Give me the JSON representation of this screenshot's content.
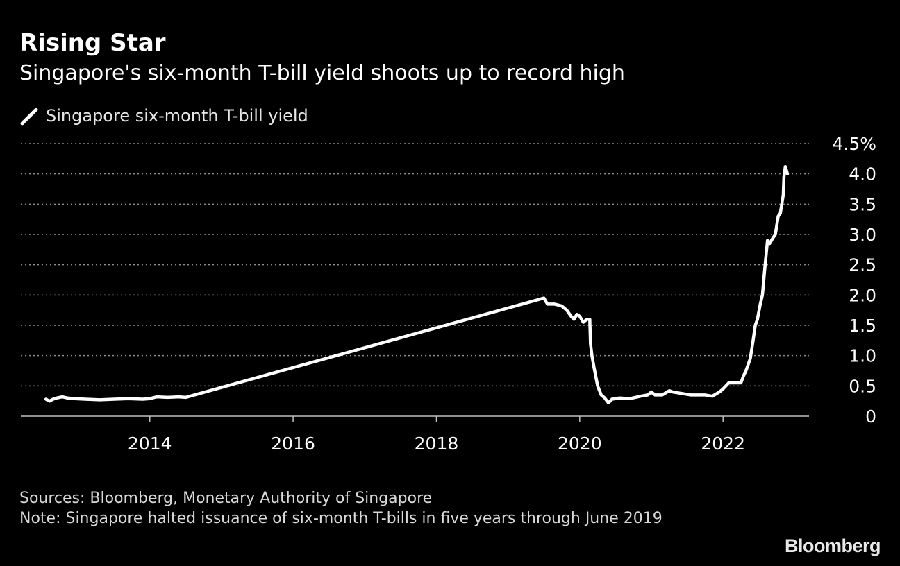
{
  "header": {
    "title": "Rising Star",
    "subtitle": "Singapore's six-month T-bill yield shoots up to record high"
  },
  "legend": {
    "label": "Singapore six-month T-bill yield"
  },
  "chart_data": {
    "type": "line",
    "title": "Rising Star",
    "subtitle": "Singapore's six-month T-bill yield shoots up to record high",
    "xlabel": "",
    "ylabel": "",
    "xlim": [
      2012.2,
      2023.2
    ],
    "ylim": [
      0,
      4.5
    ],
    "x_ticks": [
      2014,
      2016,
      2018,
      2020,
      2022
    ],
    "x_tick_labels": [
      "2014",
      "2016",
      "2018",
      "2020",
      "2022"
    ],
    "y_ticks": [
      0,
      0.5,
      1.0,
      1.5,
      2.0,
      2.5,
      3.0,
      3.5,
      4.0,
      4.5
    ],
    "y_tick_labels": [
      "0",
      "0.5",
      "1.0",
      "1.5",
      "2.0",
      "2.5",
      "3.0",
      "3.5",
      "4.0",
      "4.5%"
    ],
    "grid": "horizontal dotted",
    "colors": {
      "background": "#000000",
      "line": "#ffffff",
      "grid": "#8c8c8c",
      "text": "#ffffff"
    },
    "series": [
      {
        "name": "Singapore six-month T-bill yield",
        "x": [
          2012.55,
          2012.6,
          2012.65,
          2012.7,
          2012.78,
          2012.85,
          2012.95,
          2013.1,
          2013.3,
          2013.5,
          2013.7,
          2013.9,
          2014.0,
          2014.1,
          2014.25,
          2014.4,
          2014.5,
          2019.5,
          2019.55,
          2019.65,
          2019.75,
          2019.82,
          2019.88,
          2019.92,
          2019.96,
          2020.0,
          2020.05,
          2020.1,
          2020.14,
          2020.15,
          2020.17,
          2020.2,
          2020.25,
          2020.3,
          2020.35,
          2020.4,
          2020.45,
          2020.55,
          2020.7,
          2020.85,
          2020.95,
          2021.0,
          2021.05,
          2021.15,
          2021.25,
          2021.3,
          2021.4,
          2021.55,
          2021.65,
          2021.75,
          2021.85,
          2021.95,
          2022.0,
          2022.08,
          2022.15,
          2022.25,
          2022.28,
          2022.32,
          2022.38,
          2022.42,
          2022.45,
          2022.48,
          2022.52,
          2022.55,
          2022.58,
          2022.62,
          2022.65,
          2022.7,
          2022.73,
          2022.77,
          2022.8,
          2022.84,
          2022.85,
          2022.87,
          2022.9
        ],
        "values": [
          0.28,
          0.25,
          0.28,
          0.3,
          0.32,
          0.3,
          0.29,
          0.28,
          0.27,
          0.28,
          0.29,
          0.28,
          0.29,
          0.32,
          0.31,
          0.32,
          0.31,
          1.95,
          1.85,
          1.85,
          1.82,
          1.75,
          1.65,
          1.6,
          1.68,
          1.65,
          1.55,
          1.6,
          1.6,
          1.2,
          1.0,
          0.8,
          0.5,
          0.35,
          0.3,
          0.22,
          0.28,
          0.3,
          0.29,
          0.33,
          0.35,
          0.4,
          0.35,
          0.35,
          0.42,
          0.4,
          0.38,
          0.35,
          0.35,
          0.35,
          0.33,
          0.4,
          0.45,
          0.55,
          0.55,
          0.55,
          0.65,
          0.75,
          0.95,
          1.25,
          1.5,
          1.6,
          1.85,
          2.0,
          2.4,
          2.9,
          2.85,
          2.95,
          3.0,
          3.3,
          3.35,
          3.65,
          3.95,
          4.12,
          4.0
        ]
      }
    ]
  },
  "footer": {
    "sources": "Sources: Bloomberg, Monetary Authority of Singapore",
    "note": "Note: Singapore halted issuance of six-month T-bills in five years through June 2019"
  },
  "brand": {
    "logo_text": "Bloomberg"
  }
}
